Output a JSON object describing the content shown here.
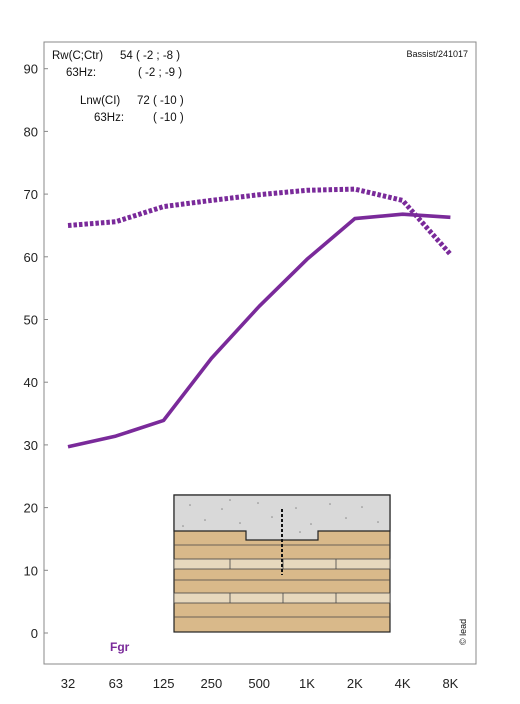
{
  "chart_data": {
    "type": "line",
    "x_categories": [
      "32",
      "63",
      "125",
      "250",
      "500",
      "1K",
      "2K",
      "4K",
      "8K"
    ],
    "ylim": [
      -5,
      95
    ],
    "yticks": [
      0,
      10,
      20,
      30,
      40,
      50,
      60,
      70,
      80,
      90
    ],
    "grid": false,
    "series": [
      {
        "style": "solid",
        "x": [
          "32",
          "63",
          "125",
          "250",
          "500",
          "1K",
          "2K",
          "4K",
          "8K"
        ],
        "values": [
          29.7,
          31.4,
          33.9,
          43.8,
          52.1,
          59.6,
          66.1,
          66.8,
          66.3
        ]
      },
      {
        "style": "dotted",
        "x": [
          "32",
          "63",
          "125",
          "250",
          "500",
          "1K",
          "2K",
          "4K",
          "8K"
        ],
        "values": [
          65.0,
          65.6,
          68.0,
          69.0,
          69.9,
          70.6,
          70.8,
          69.0,
          60.4
        ]
      }
    ],
    "color": "#7a2a9a",
    "annotations": {
      "rw_label": "Rw(C;Ctr)",
      "rw_value": "54 ( -2 ; -8 )",
      "rw_63_label": "63Hz:",
      "rw_63_value": "( -2 ; -9 )",
      "lnw_label": "Lnw(CI)",
      "lnw_value": "72 ( -10 )",
      "lnw_63_label": "63Hz:",
      "lnw_63_value": "( -10 )",
      "source": "Bassist/241017",
      "code": "Fgr",
      "vertical_mark": "© lead"
    }
  }
}
